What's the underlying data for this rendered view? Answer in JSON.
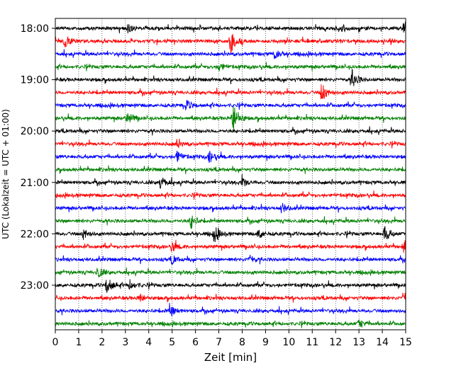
{
  "chart_data": {
    "type": "line",
    "subtype": "seismogram helicorder",
    "xlabel": "Zeit  [min]",
    "ylabel": "UTC (Lokalzeit = UTC + 01:00)",
    "xlim": [
      0,
      15
    ],
    "x_ticks": [
      "0",
      "1",
      "2",
      "3",
      "4",
      "5",
      "6",
      "7",
      "8",
      "9",
      "10",
      "11",
      "12",
      "13",
      "14",
      "15"
    ],
    "y_tick_labels": [
      "18:00",
      "19:00",
      "20:00",
      "21:00",
      "22:00",
      "23:00"
    ],
    "row_interval_minutes": 15,
    "row_count": 24,
    "row_start_times": [
      "18:00",
      "18:15",
      "18:30",
      "18:45",
      "19:00",
      "19:15",
      "19:30",
      "19:45",
      "20:00",
      "20:15",
      "20:30",
      "20:45",
      "21:00",
      "21:15",
      "21:30",
      "21:45",
      "22:00",
      "22:15",
      "22:30",
      "22:45",
      "23:00",
      "23:15",
      "23:30",
      "23:45"
    ],
    "series_colors": [
      "#000000",
      "#ff0000",
      "#0000ff",
      "#008000"
    ],
    "grid": "vertical dotted lines at each minute",
    "events": [
      {
        "row": 0,
        "t": 3.1,
        "amp": 0.7
      },
      {
        "row": 0,
        "t": 12.3,
        "amp": 0.6
      },
      {
        "row": 0,
        "t": 14.9,
        "amp": 0.8
      },
      {
        "row": 1,
        "t": 0.4,
        "amp": 1.0
      },
      {
        "row": 1,
        "t": 7.5,
        "amp": 1.9
      },
      {
        "row": 2,
        "t": 9.4,
        "amp": 0.9
      },
      {
        "row": 3,
        "t": 7.0,
        "amp": 0.7
      },
      {
        "row": 4,
        "t": 12.7,
        "amp": 1.5
      },
      {
        "row": 5,
        "t": 11.4,
        "amp": 1.5
      },
      {
        "row": 6,
        "t": 5.6,
        "amp": 0.8
      },
      {
        "row": 7,
        "t": 3.1,
        "amp": 1.0
      },
      {
        "row": 7,
        "t": 7.6,
        "amp": 2.7
      },
      {
        "row": 9,
        "t": 5.2,
        "amp": 0.6
      },
      {
        "row": 10,
        "t": 5.2,
        "amp": 1.0
      },
      {
        "row": 10,
        "t": 6.6,
        "amp": 0.9
      },
      {
        "row": 12,
        "t": 4.5,
        "amp": 1.0
      },
      {
        "row": 12,
        "t": 8.0,
        "amp": 0.8
      },
      {
        "row": 14,
        "t": 9.7,
        "amp": 0.8
      },
      {
        "row": 15,
        "t": 5.8,
        "amp": 1.2
      },
      {
        "row": 16,
        "t": 1.2,
        "amp": 0.8
      },
      {
        "row": 16,
        "t": 6.8,
        "amp": 1.3
      },
      {
        "row": 16,
        "t": 8.7,
        "amp": 0.8
      },
      {
        "row": 16,
        "t": 14.1,
        "amp": 1.3
      },
      {
        "row": 17,
        "t": 5.0,
        "amp": 0.8
      },
      {
        "row": 17,
        "t": 14.9,
        "amp": 0.8
      },
      {
        "row": 18,
        "t": 5.0,
        "amp": 0.7
      },
      {
        "row": 18,
        "t": 8.3,
        "amp": 0.7
      },
      {
        "row": 19,
        "t": 1.8,
        "amp": 0.9
      },
      {
        "row": 20,
        "t": 2.2,
        "amp": 1.4
      },
      {
        "row": 20,
        "t": 3.2,
        "amp": 0.8
      },
      {
        "row": 21,
        "t": 3.6,
        "amp": 0.7
      },
      {
        "row": 21,
        "t": 14.9,
        "amp": 0.9
      },
      {
        "row": 22,
        "t": 4.9,
        "amp": 1.0
      },
      {
        "row": 23,
        "t": 13.0,
        "amp": 0.7
      }
    ]
  }
}
